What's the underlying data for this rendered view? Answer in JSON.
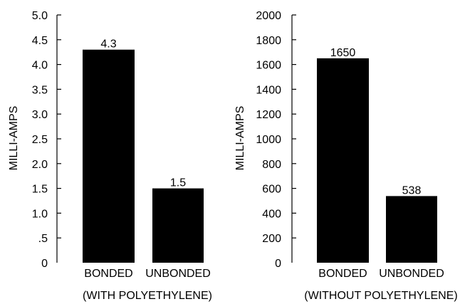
{
  "chart_data": [
    {
      "type": "bar",
      "categories": [
        "BONDED",
        "UNBONDED"
      ],
      "values": [
        4.3,
        1.5
      ],
      "data_labels": [
        "4.3",
        "1.5"
      ],
      "ylabel": "MILLI-AMPS",
      "caption": "(WITH POLYETHYLENE)",
      "ylim": [
        0,
        5.0
      ],
      "ytick_values": [
        0,
        0.5,
        1.0,
        1.5,
        2.0,
        2.5,
        3.0,
        3.5,
        4.0,
        4.5,
        5.0
      ],
      "ytick_labels": [
        "0",
        ".5",
        "1.0",
        "1.5",
        "2.0",
        "2.5",
        "3.0",
        "3.5",
        "4.0",
        "4.5",
        "5.0"
      ],
      "bar_color": "#000000",
      "grid": false
    },
    {
      "type": "bar",
      "categories": [
        "BONDED",
        "UNBONDED"
      ],
      "values": [
        1650,
        538
      ],
      "data_labels": [
        "1650",
        "538"
      ],
      "ylabel": "MILLI-AMPS",
      "caption": "(WITHOUT POLYETHYLENE)",
      "ylim": [
        0,
        2000
      ],
      "ytick_values": [
        0,
        200,
        400,
        600,
        800,
        1000,
        1200,
        1400,
        1600,
        1800,
        2000
      ],
      "ytick_labels": [
        "0",
        "200",
        "400",
        "600",
        "800",
        "1000",
        "1200",
        "1400",
        "1600",
        "1800",
        "2000"
      ],
      "bar_color": "#000000",
      "grid": false
    }
  ]
}
